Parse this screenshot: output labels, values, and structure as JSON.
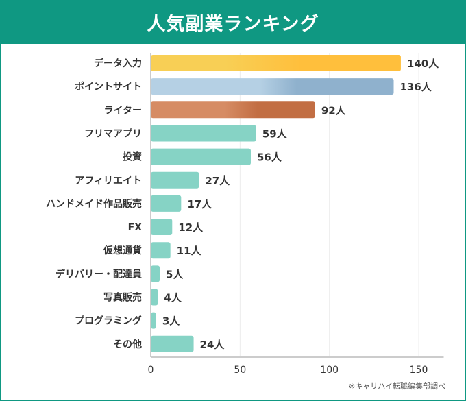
{
  "title": "人気副業ランキング",
  "note": "※キャリハイ転職編集部調べ",
  "chart_data": {
    "type": "bar",
    "orientation": "horizontal",
    "title": "人気副業ランキング",
    "categories": [
      "データ入力",
      "ポイントサイト",
      "ライター",
      "フリマアプリ",
      "投資",
      "アフィリエイト",
      "ハンドメイド作品販売",
      "FX",
      "仮想通貨",
      "デリバリー・配達員",
      "写真販売",
      "プログラミング",
      "その他"
    ],
    "values": [
      140,
      136,
      92,
      59,
      56,
      27,
      17,
      12,
      11,
      5,
      4,
      3,
      24
    ],
    "unit": "人",
    "xlim": [
      0,
      164
    ],
    "xticks": [
      0,
      50,
      100,
      150
    ],
    "grid": true,
    "colors": {
      "first": [
        "#f8cf55",
        "#ffbf3c"
      ],
      "second": [
        "#b5d0e4",
        "#8fb1cd"
      ],
      "third": [
        "#d68c64",
        "#c26e43"
      ],
      "other": "#86d3c5",
      "header": "#0f9882"
    }
  }
}
